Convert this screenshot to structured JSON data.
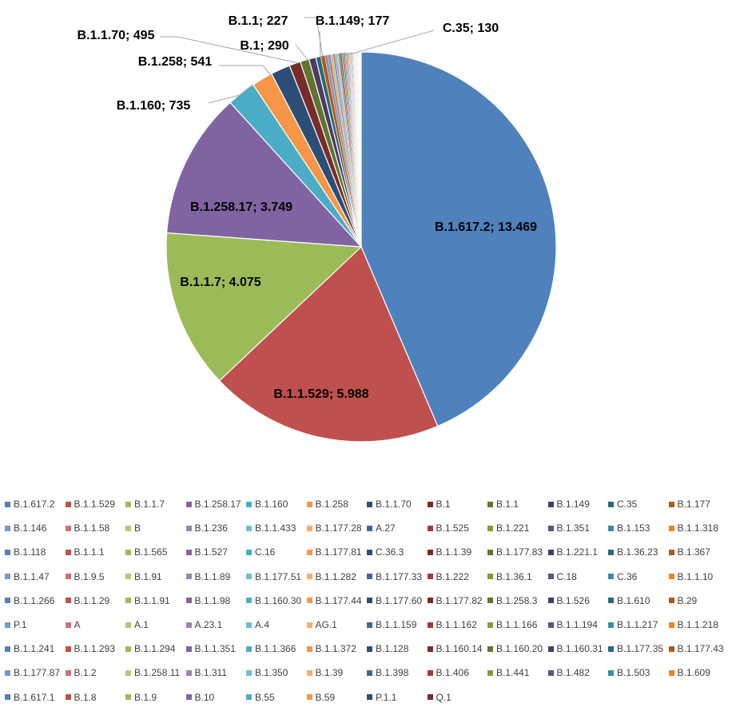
{
  "chart_data": {
    "type": "pie",
    "title": "",
    "labels_shown": [
      {
        "category": "B.1.617.2",
        "text": "B.1.617.2; 13.469"
      },
      {
        "category": "B.1.1.529",
        "text": "B.1.1.529; 5.988"
      },
      {
        "category": "B.1.1.7",
        "text": "B.1.1.7; 4.075"
      },
      {
        "category": "B.1.258.17",
        "text": "B.1.258.17; 3.749"
      },
      {
        "category": "B.1.160",
        "text": "B.1.160; 735"
      },
      {
        "category": "B.1.258",
        "text": "B.1.258; 541"
      },
      {
        "category": "B.1.1.70",
        "text": "B.1.1.70; 495"
      },
      {
        "category": "B.1",
        "text": "B.1; 290"
      },
      {
        "category": "B.1.1",
        "text": "B.1.1; 227"
      },
      {
        "category": "B.1.149",
        "text": "B.1.149; 177"
      },
      {
        "category": "C.35",
        "text": "C.35; 130"
      }
    ],
    "legend_position": "bottom",
    "categories": [
      "B.1.617.2",
      "B.1.1.529",
      "B.1.1.7",
      "B.1.258.17",
      "B.1.160",
      "B.1.258",
      "B.1.1.70",
      "B.1",
      "B.1.1",
      "B.1.149",
      "C.35",
      "B.1.177",
      "B.1.146",
      "B.1.1.58",
      "B",
      "B.1.236",
      "B.1.1.433",
      "B.1.177.28",
      "A.27",
      "B.1.525",
      "B.1.221",
      "B.1.351",
      "B.1.153",
      "B.1.1.318",
      "B.1.118",
      "B.1.1.1",
      "B.1.565",
      "B.1.527",
      "C.16",
      "B.1.177.81",
      "C.36.3",
      "B.1.1.39",
      "B.1.177.83",
      "B.1.221.1",
      "B.1.36.23",
      "B.1.367",
      "B.1.1.47",
      "B.1.9.5",
      "B.1.91",
      "B.1.1.89",
      "B.1.177.51",
      "B.1.1.282",
      "B.1.177.33",
      "B.1.222",
      "B.1.36.1",
      "C.18",
      "C.36",
      "B.1.1.10",
      "B.1.1.266",
      "B.1.1.29",
      "B.1.1.91",
      "B.1.1.98",
      "B.1.160.30",
      "B.1.177.44",
      "B.1.177.60",
      "B.1.177.82",
      "B.1.258.3",
      "B.1.526",
      "B.1.610",
      "B.29",
      "P.1",
      "A",
      "A.1",
      "A.23.1",
      "A.4",
      "AG.1",
      "B.1.1.159",
      "B.1.1.162",
      "B.1.1.166",
      "B.1.1.194",
      "B.1.1.217",
      "B.1.1.218",
      "B.1.1.241",
      "B.1.1.293",
      "B.1.1.294",
      "B.1.1.351",
      "B.1.1.366",
      "B.1.1.372",
      "B.1.128",
      "B.1.160.14",
      "B.1.160.20",
      "B.1.160.31",
      "B.1.177.35",
      "B.1.177.43",
      "B.1.177.87",
      "B.1.2",
      "B.1.258.11",
      "B.1.311",
      "B.1.350",
      "B.1.39",
      "B.1.398",
      "B.1.406",
      "B.1.441",
      "B.1.482",
      "B.1.503",
      "B.1.609",
      "B.1.617.1",
      "B.1.8",
      "B.1.9",
      "B.10",
      "B.55",
      "B.59",
      "P.1.1",
      "Q.1"
    ],
    "values": [
      13469,
      5988,
      4075,
      3749,
      735,
      541,
      495,
      290,
      227,
      177,
      130,
      100,
      80,
      70,
      60,
      55,
      50,
      45,
      40,
      36,
      33,
      30,
      27,
      25,
      23,
      21,
      19,
      17,
      16,
      15,
      14,
      13,
      12,
      11,
      10,
      10,
      9,
      9,
      8,
      8,
      7,
      7,
      7,
      6,
      6,
      6,
      5,
      5,
      5,
      5,
      4,
      4,
      4,
      4,
      4,
      4,
      3,
      3,
      3,
      3,
      3,
      3,
      3,
      2,
      2,
      2,
      2,
      2,
      2,
      2,
      2,
      2,
      2,
      2,
      2,
      2,
      2,
      2,
      2,
      2,
      2,
      1,
      1,
      1,
      1,
      1,
      1,
      1,
      1,
      1,
      1,
      1,
      1,
      1,
      1,
      1,
      1,
      1,
      1,
      1,
      1,
      1,
      1,
      1
    ],
    "palette": [
      "#4F81BD",
      "#C0504D",
      "#9BBB59",
      "#8064A2",
      "#4BACC6",
      "#F79646",
      "#2C4D75",
      "#772C2A",
      "#5F7530",
      "#4D3B62",
      "#276A7C",
      "#B65708",
      "#729ACA",
      "#CD7371",
      "#AFC97A",
      "#9983B5",
      "#6FBDD1",
      "#F9AB6B",
      "#3A679C",
      "#9F3B38",
      "#7E9D40",
      "#664F83",
      "#358EA6",
      "#F38120"
    ]
  }
}
